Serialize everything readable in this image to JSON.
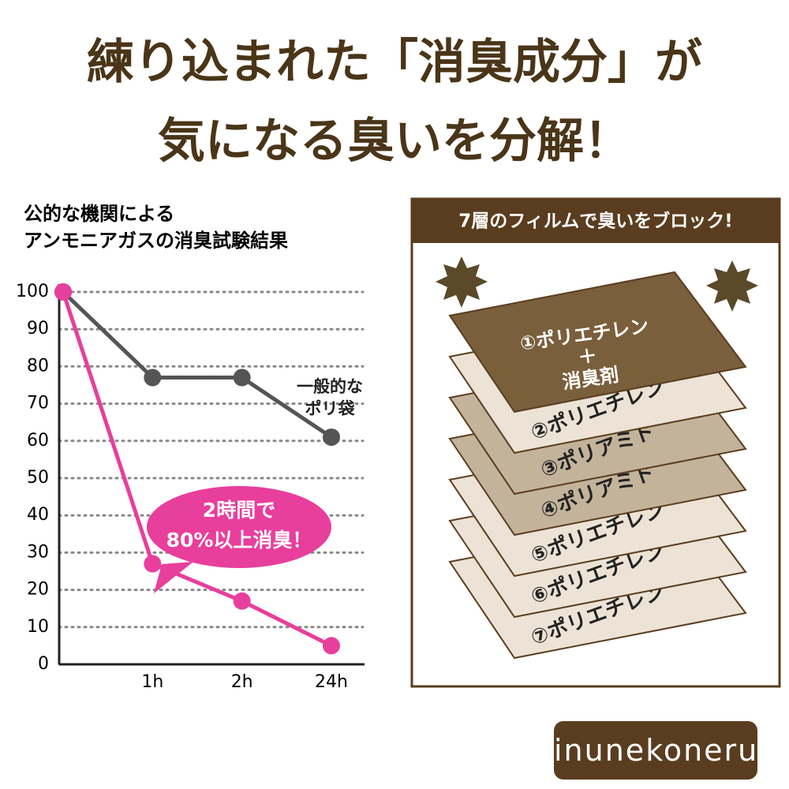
{
  "header": {
    "lines": [
      "練り込まれた「消臭成分」が",
      "気になる臭いを分解！"
    ]
  },
  "chart_data": {
    "type": "line",
    "title_lines": [
      "公的な機関による",
      "アンモニアガスの消臭試験結果"
    ],
    "categories": [
      null,
      "1h",
      "2h",
      "24h"
    ],
    "series": [
      {
        "name": "一般的なポリ袋",
        "color": "#555555",
        "values": [
          100,
          77,
          77,
          61
        ]
      },
      {
        "color": "#e83e9c",
        "values": [
          100,
          27,
          17,
          5
        ]
      }
    ],
    "ylim": [
      0,
      100
    ],
    "yticks": [
      0,
      10,
      20,
      30,
      40,
      50,
      60,
      70,
      80,
      90,
      100
    ],
    "grid": true,
    "annotation_lines": [
      "2時間で",
      "80%以上消臭！"
    ]
  },
  "layers_panel": {
    "title": "7層のフィルムで臭いをブロック!",
    "layers": [
      {
        "lines": [
          "①ポリエチレン",
          "＋",
          "消臭剤"
        ],
        "color": "#7a5f3c"
      },
      {
        "lines": [
          "②ポリエチレン"
        ],
        "color": "#ece3d6"
      },
      {
        "lines": [
          "③ポリアミド"
        ],
        "color": "#c3b39b"
      },
      {
        "lines": [
          "④ポリアミド"
        ],
        "color": "#c3b39b"
      },
      {
        "lines": [
          "⑤ポリエチレン"
        ],
        "color": "#ece3d6"
      },
      {
        "lines": [
          "⑥ポリエチレン"
        ],
        "color": "#ece3d6"
      },
      {
        "lines": [
          "⑦ポリエチレン"
        ],
        "color": "#ece3d6"
      }
    ]
  },
  "brand": "inunekoneru"
}
